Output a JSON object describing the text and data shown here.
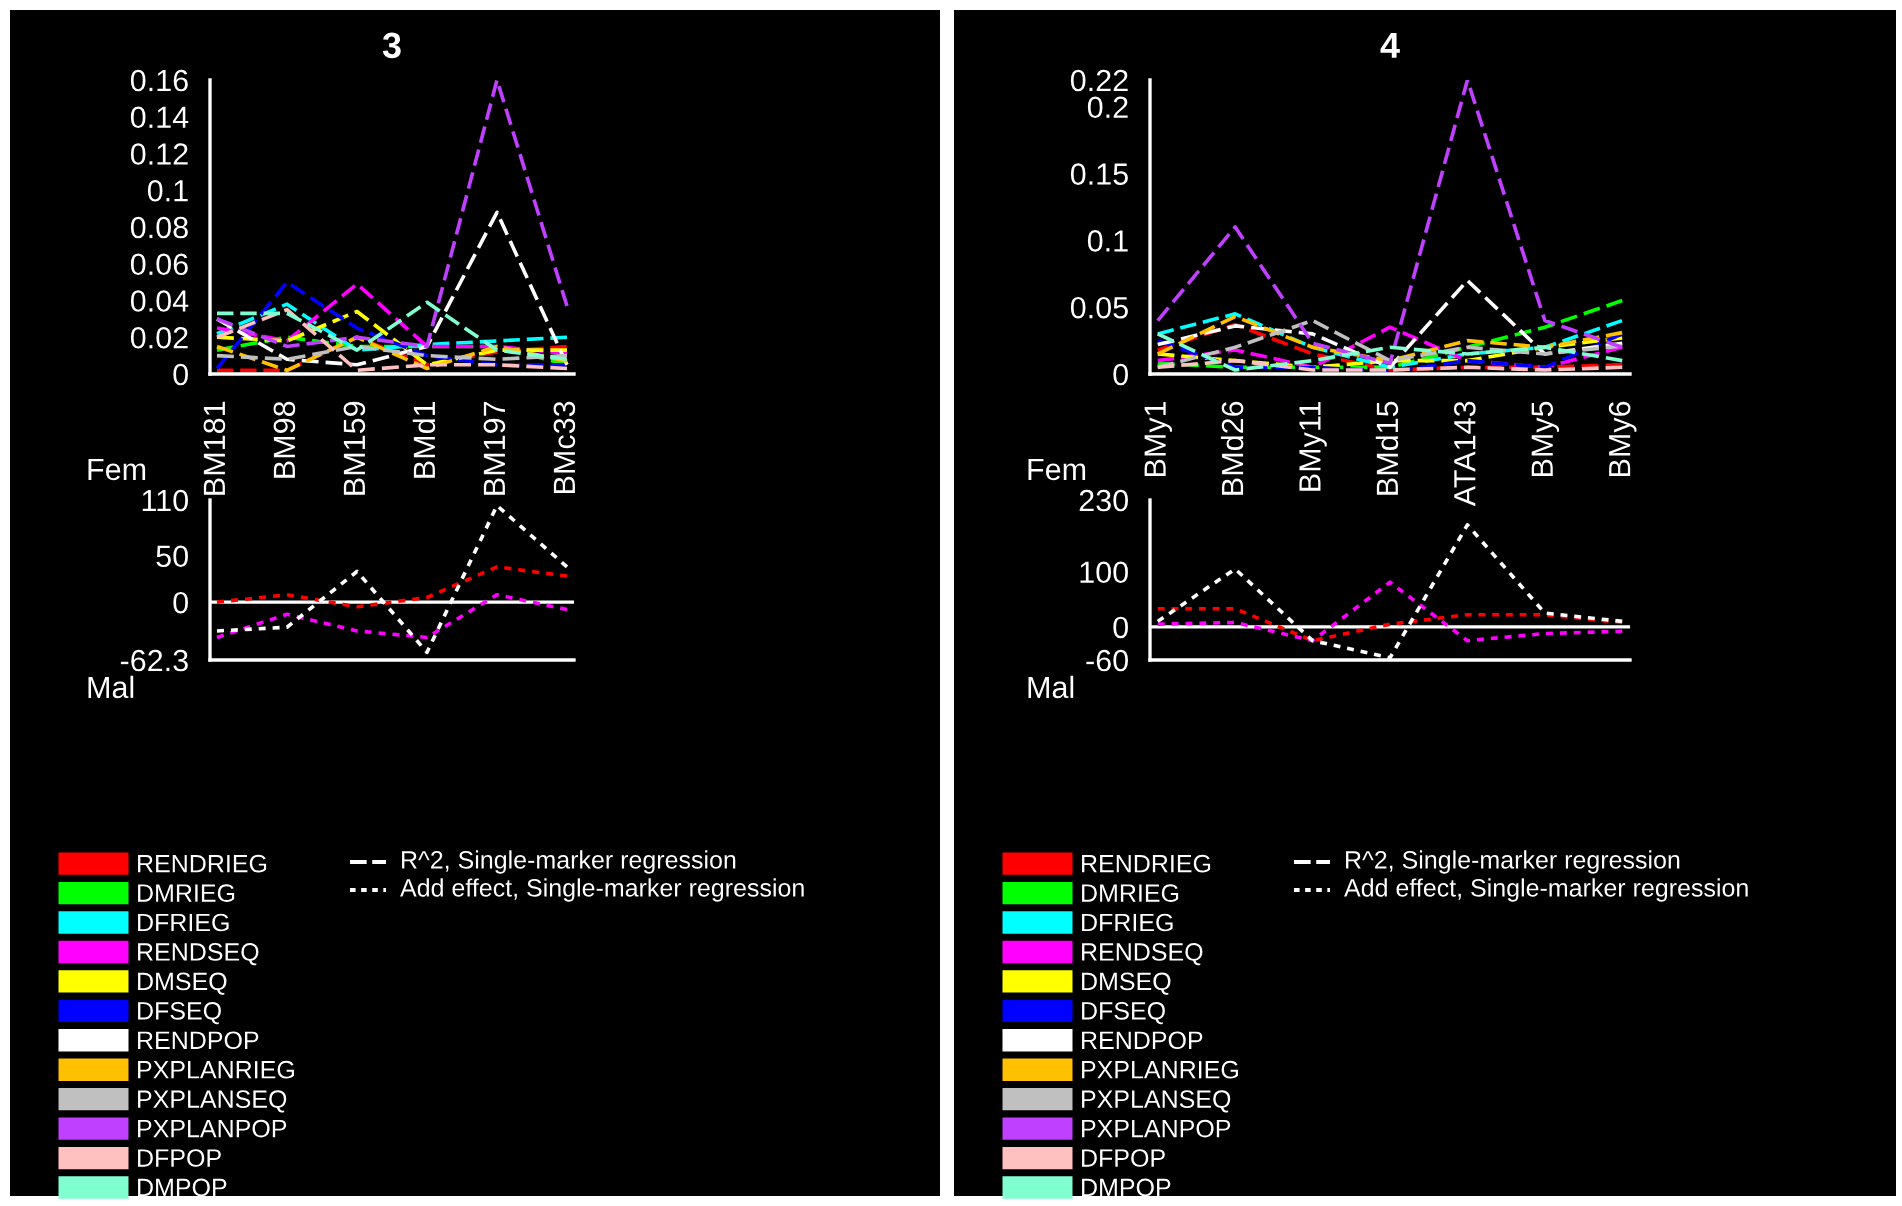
{
  "chart_data": [
    {
      "type": "line",
      "title": "3",
      "categories": [
        "BM181",
        "BM98",
        "BM159",
        "BMd1",
        "BM197",
        "BMc33"
      ],
      "ylim": [
        0,
        0.16
      ],
      "yticks": [
        0,
        0.02,
        0.04,
        0.06,
        0.08,
        0.1,
        0.12,
        0.14,
        0.16
      ],
      "grid": false,
      "marker": "none",
      "line_style": "dashed",
      "legend": "bottom",
      "tick_labels": true,
      "annotations": [
        "R^2, Single-marker regression",
        "Add effect, Single-marker regression"
      ],
      "series": [
        {
          "name": "RENDRIEG",
          "color": "#ff0000",
          "values": [
            0.002,
            0.002,
            0.02,
            0.005,
            0.012,
            0.015
          ]
        },
        {
          "name": "DMRIEG",
          "color": "#00ff00",
          "values": [
            0.013,
            0.02,
            0.015,
            0.015,
            0.015,
            0.005
          ]
        },
        {
          "name": "DFRIEG",
          "color": "#00ffff",
          "values": [
            0.022,
            0.038,
            0.013,
            0.016,
            0.018,
            0.02
          ]
        },
        {
          "name": "RENDSEQ",
          "color": "#ff00ff",
          "values": [
            0.025,
            0.018,
            0.049,
            0.015,
            0.015,
            0.011
          ]
        },
        {
          "name": "DMSEQ",
          "color": "#ffff00",
          "values": [
            0.02,
            0.018,
            0.034,
            0.005,
            0.013,
            0.013
          ]
        },
        {
          "name": "DFSEQ",
          "color": "#0000ff",
          "values": [
            0.003,
            0.05,
            0.025,
            0.01,
            0.005,
            0.005
          ]
        },
        {
          "name": "RENDPOP",
          "color": "#ffffff",
          "values": [
            0.03,
            0.008,
            0.005,
            0.015,
            0.088,
            0.005
          ]
        },
        {
          "name": "PXPLANRIEG",
          "color": "#ffc000",
          "values": [
            0.015,
            0.002,
            0.02,
            0.003,
            0.015,
            0.007
          ]
        },
        {
          "name": "PXPLANSEQ",
          "color": "#c0c0c0",
          "values": [
            0.01,
            0.008,
            0.015,
            0.01,
            0.008,
            0.01
          ]
        },
        {
          "name": "PXPLANPOP",
          "color": "#c040ff",
          "values": [
            0.03,
            0.015,
            0.02,
            0.015,
            0.16,
            0.037
          ]
        },
        {
          "name": "DFPOP",
          "color": "#ffc0c0",
          "values": [
            0.02,
            0.035,
            0.002,
            0.005,
            0.005,
            0.003
          ]
        },
        {
          "name": "DMPOP",
          "color": "#80ffd0",
          "values": [
            0.033,
            0.033,
            0.013,
            0.039,
            0.013,
            0.008
          ]
        }
      ]
    },
    {
      "type": "line",
      "categories": [
        null,
        null,
        null,
        null,
        null,
        null
      ],
      "ylim": [
        -62.3,
        110
      ],
      "yticks": [
        -62.3,
        0,
        50,
        110
      ],
      "grid": false,
      "marker": "none",
      "line_style": "dotted",
      "tick_labels": "y",
      "annotations": [
        "Fem",
        "Mal"
      ],
      "ref_lines": [
        {
          "axis": "y",
          "value": 0,
          "color": "#ffffff"
        }
      ],
      "series": [
        {
          "color": "#ff0000",
          "values": [
            0,
            8,
            -5,
            5,
            38,
            28
          ]
        },
        {
          "color": "#ff00ff",
          "values": [
            -38,
            -13,
            -31,
            -38,
            8,
            -8
          ]
        },
        {
          "color": "#ffffff",
          "values": [
            -31,
            -27,
            33,
            -54,
            104,
            38
          ]
        }
      ]
    },
    {
      "type": "line",
      "title": "4",
      "categories": [
        "BMy1",
        "BMd26",
        "BMy11",
        "BMd15",
        "ATA143",
        "BMy5",
        "BMy6"
      ],
      "ylim": [
        0,
        0.22
      ],
      "yticks": [
        0,
        0.05,
        0.1,
        0.15,
        0.2,
        0.22
      ],
      "grid": false,
      "marker": "none",
      "line_style": "dashed",
      "legend": "bottom",
      "tick_labels": true,
      "annotations": [
        "R^2, Single-marker regression",
        "Add effect, Single-marker regression"
      ],
      "series": [
        {
          "name": "RENDRIEG",
          "color": "#ff0000",
          "values": [
            0.018,
            0.037,
            0.015,
            0.003,
            0.005,
            0.005,
            0.007
          ]
        },
        {
          "name": "DMRIEG",
          "color": "#00ff00",
          "values": [
            0.008,
            0.005,
            0.005,
            0.005,
            0.02,
            0.035,
            0.055
          ]
        },
        {
          "name": "DFRIEG",
          "color": "#00ffff",
          "values": [
            0.03,
            0.045,
            0.02,
            0.005,
            0.015,
            0.02,
            0.04
          ]
        },
        {
          "name": "RENDSEQ",
          "color": "#ff00ff",
          "values": [
            0.01,
            0.018,
            0.005,
            0.035,
            0.01,
            0.005,
            0.02
          ]
        },
        {
          "name": "DMSEQ",
          "color": "#ffff00",
          "values": [
            0.015,
            0.01,
            0.005,
            0.01,
            0.01,
            0.02,
            0.027
          ]
        },
        {
          "name": "DFSEQ",
          "color": "#0000ff",
          "values": [
            0.025,
            0.005,
            0.005,
            0.002,
            0.01,
            0.005,
            0.03
          ]
        },
        {
          "name": "RENDPOP",
          "color": "#ffffff",
          "values": [
            0.022,
            0.036,
            0.03,
            0.005,
            0.07,
            0.015,
            0.023
          ]
        },
        {
          "name": "PXPLANRIEG",
          "color": "#ffc000",
          "values": [
            0.015,
            0.043,
            0.02,
            0.01,
            0.025,
            0.02,
            0.031
          ]
        },
        {
          "name": "PXPLANSEQ",
          "color": "#c0c0c0",
          "values": [
            0.005,
            0.02,
            0.04,
            0.01,
            0.02,
            0.015,
            0.021
          ]
        },
        {
          "name": "PXPLANPOP",
          "color": "#c040ff",
          "values": [
            0.04,
            0.11,
            0.023,
            0.008,
            0.22,
            0.04,
            0.02
          ]
        },
        {
          "name": "DFPOP",
          "color": "#ffc0c0",
          "values": [
            0.005,
            0.01,
            0.003,
            0.003,
            0.005,
            0.003,
            0.005
          ]
        },
        {
          "name": "DMPOP",
          "color": "#80ffd0",
          "values": [
            0.03,
            0.003,
            0.01,
            0.02,
            0.015,
            0.02,
            0.01
          ]
        }
      ]
    },
    {
      "type": "line",
      "categories": [
        null,
        null,
        null,
        null,
        null,
        null,
        null
      ],
      "ylim": [
        -60,
        230
      ],
      "yticks": [
        -60,
        0,
        100,
        230
      ],
      "grid": false,
      "marker": "none",
      "line_style": "dotted",
      "tick_labels": "y",
      "annotations": [
        "Fem",
        "Mal"
      ],
      "ref_lines": [
        {
          "axis": "y",
          "value": 0,
          "color": "#ffffff"
        }
      ],
      "series": [
        {
          "color": "#ff0000",
          "values": [
            33,
            33,
            -25,
            5,
            22,
            22,
            8
          ]
        },
        {
          "color": "#ff00ff",
          "values": [
            5,
            8,
            -25,
            81,
            -25,
            -12,
            -8
          ]
        },
        {
          "color": "#ffffff",
          "values": [
            10,
            105,
            -25,
            -56,
            185,
            25,
            10
          ]
        }
      ]
    }
  ]
}
